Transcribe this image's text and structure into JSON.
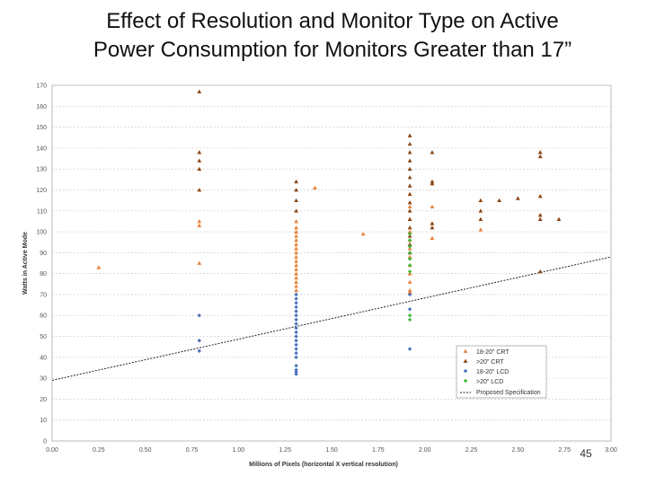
{
  "slide": {
    "title_line1": "Effect of Resolution and Monitor Type on Active",
    "title_line2": "Power Consumption for Monitors Greater than 17”",
    "page_number": "45"
  },
  "chart_data": {
    "type": "scatter",
    "title": "Effect of Resolution and Monitor Type on Active Power Consumption for Monitors Greater than 17”",
    "xlabel": "Millions of Pixels (horizontal X vertical resolution)",
    "ylabel": "Watts in Active Mode",
    "xlim": [
      0,
      3.0
    ],
    "ylim": [
      0,
      170
    ],
    "x_ticks": [
      0,
      0.25,
      0.5,
      0.75,
      1.0,
      1.25,
      1.5,
      1.75,
      2.0,
      2.25,
      2.5,
      2.75,
      3.0
    ],
    "x_tick_labels": [
      "0.00",
      "0.25",
      "0.50",
      "0.75",
      "1.00",
      "1.25",
      "1.50",
      "1.75",
      "2.00",
      "2.25",
      "2.50",
      "2.75",
      "3.00"
    ],
    "y_ticks": [
      0,
      10,
      20,
      30,
      40,
      50,
      60,
      70,
      80,
      90,
      100,
      110,
      120,
      130,
      140,
      150,
      160,
      170
    ],
    "y_tick_labels": [
      "0",
      "10",
      "20",
      "30",
      "40",
      "50",
      "60",
      "70",
      "80",
      "90",
      "100",
      "110",
      "120",
      "130",
      "140",
      "150",
      "160",
      "170"
    ],
    "grid": true,
    "legend_position": "bottom-right",
    "series": [
      {
        "name": "18-20\" CRT",
        "color": "#e8823a",
        "marker": "triangle",
        "points": [
          [
            0.25,
            83
          ],
          [
            0.79,
            105
          ],
          [
            0.79,
            103
          ],
          [
            0.79,
            85
          ],
          [
            1.31,
            105
          ],
          [
            1.31,
            102
          ],
          [
            1.31,
            100
          ],
          [
            1.31,
            98
          ],
          [
            1.31,
            96
          ],
          [
            1.31,
            94
          ],
          [
            1.31,
            92
          ],
          [
            1.31,
            90
          ],
          [
            1.31,
            88
          ],
          [
            1.31,
            86
          ],
          [
            1.31,
            84
          ],
          [
            1.31,
            82
          ],
          [
            1.31,
            80
          ],
          [
            1.31,
            78
          ],
          [
            1.31,
            76
          ],
          [
            1.31,
            74
          ],
          [
            1.31,
            72
          ],
          [
            1.41,
            121
          ],
          [
            1.67,
            99
          ],
          [
            1.92,
            118
          ],
          [
            1.92,
            112
          ],
          [
            1.92,
            106
          ],
          [
            1.92,
            100
          ],
          [
            1.92,
            96
          ],
          [
            1.92,
            92
          ],
          [
            1.92,
            88
          ],
          [
            1.92,
            84
          ],
          [
            1.92,
            80
          ],
          [
            1.92,
            76
          ],
          [
            1.92,
            72
          ],
          [
            1.92,
            71
          ],
          [
            2.04,
            112
          ],
          [
            2.04,
            97
          ],
          [
            2.3,
            101
          ]
        ]
      },
      {
        "name": ">20\" CRT",
        "color": "#8b4513",
        "marker": "triangle",
        "points": [
          [
            0.79,
            167
          ],
          [
            0.79,
            138
          ],
          [
            0.79,
            134
          ],
          [
            0.79,
            130
          ],
          [
            0.79,
            120
          ],
          [
            1.31,
            124
          ],
          [
            1.31,
            120
          ],
          [
            1.31,
            115
          ],
          [
            1.31,
            110
          ],
          [
            1.92,
            146
          ],
          [
            1.92,
            142
          ],
          [
            1.92,
            138
          ],
          [
            1.92,
            134
          ],
          [
            1.92,
            130
          ],
          [
            1.92,
            126
          ],
          [
            1.92,
            122
          ],
          [
            1.92,
            118
          ],
          [
            1.92,
            114
          ],
          [
            1.92,
            110
          ],
          [
            1.92,
            106
          ],
          [
            1.92,
            102
          ],
          [
            1.92,
            98
          ],
          [
            1.92,
            94
          ],
          [
            1.92,
            90
          ],
          [
            2.04,
            138
          ],
          [
            2.04,
            124
          ],
          [
            2.04,
            123
          ],
          [
            2.04,
            104
          ],
          [
            2.04,
            102
          ],
          [
            2.3,
            115
          ],
          [
            2.3,
            110
          ],
          [
            2.3,
            106
          ],
          [
            2.4,
            115
          ],
          [
            2.5,
            116
          ],
          [
            2.62,
            138
          ],
          [
            2.62,
            136
          ],
          [
            2.62,
            117
          ],
          [
            2.62,
            108
          ],
          [
            2.62,
            106
          ],
          [
            2.72,
            106
          ],
          [
            2.62,
            81
          ]
        ]
      },
      {
        "name": "18-20\" LCD",
        "color": "#4a72b8",
        "marker": "diamond",
        "points": [
          [
            0.79,
            60
          ],
          [
            0.79,
            48
          ],
          [
            0.79,
            43
          ],
          [
            1.31,
            70
          ],
          [
            1.31,
            68
          ],
          [
            1.31,
            66
          ],
          [
            1.31,
            64
          ],
          [
            1.31,
            62
          ],
          [
            1.31,
            60
          ],
          [
            1.31,
            58
          ],
          [
            1.31,
            56
          ],
          [
            1.31,
            54
          ],
          [
            1.31,
            52
          ],
          [
            1.31,
            50
          ],
          [
            1.31,
            48
          ],
          [
            1.31,
            46
          ],
          [
            1.31,
            44
          ],
          [
            1.31,
            42
          ],
          [
            1.31,
            40
          ],
          [
            1.31,
            36
          ],
          [
            1.31,
            34
          ],
          [
            1.31,
            33
          ],
          [
            1.31,
            32
          ],
          [
            1.92,
            70
          ],
          [
            1.92,
            63
          ],
          [
            1.92,
            44
          ]
        ]
      },
      {
        "name": ">20\" LCD",
        "color": "#3cb83c",
        "marker": "diamond",
        "points": [
          [
            1.92,
            99
          ],
          [
            1.92,
            96
          ],
          [
            1.92,
            93
          ],
          [
            1.92,
            90
          ],
          [
            1.92,
            87
          ],
          [
            1.92,
            84
          ],
          [
            1.92,
            81
          ],
          [
            1.92,
            60
          ],
          [
            1.92,
            58
          ]
        ]
      }
    ],
    "reference_line": {
      "name": "Proposed Specification",
      "x": [
        0,
        3.0
      ],
      "y": [
        29,
        88
      ],
      "style": "dashed",
      "color": "#222222"
    }
  }
}
